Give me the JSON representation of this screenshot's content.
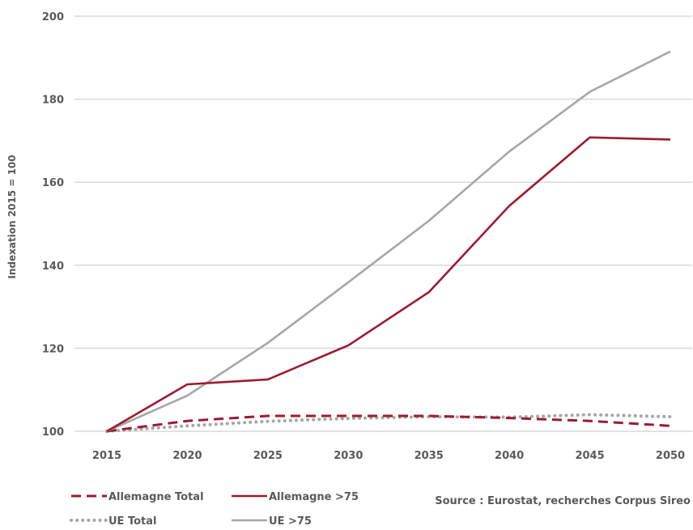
{
  "chart_data": {
    "type": "line",
    "title": "",
    "xlabel": "",
    "ylabel": "Indexation 2015 = 100",
    "x": [
      "2015",
      "2020",
      "2025",
      "2030",
      "2035",
      "2040",
      "2045",
      "2050"
    ],
    "yticks": [
      "100",
      "120",
      "140",
      "160",
      "180",
      "200"
    ],
    "ylim": [
      100,
      200
    ],
    "grid": true,
    "legend_position": "bottom",
    "series": [
      {
        "name": "Allemagne Total",
        "values": [
          100,
          102.5,
          103.7,
          103.7,
          103.7,
          103.2,
          102.5,
          101.3
        ],
        "color": "#9b1b30",
        "style": "dashed"
      },
      {
        "name": "Allemagne >75",
        "values": [
          100,
          111.3,
          112.5,
          120.7,
          133.5,
          154.3,
          170.8,
          170.3
        ],
        "color": "#9b1b30",
        "style": "solid"
      },
      {
        "name": "UE Total",
        "values": [
          100,
          101.3,
          102.4,
          103.1,
          103.5,
          103.4,
          104.0,
          103.5
        ],
        "color": "#a6a6a6",
        "style": "dotted"
      },
      {
        "name": "UE >75",
        "values": [
          100,
          108.6,
          121.3,
          135.9,
          150.7,
          167.4,
          181.8,
          191.5
        ],
        "color": "#a6a6a6",
        "style": "solid"
      }
    ],
    "source_note": "Source : Eurostat, recherches Corpus Sireo"
  }
}
